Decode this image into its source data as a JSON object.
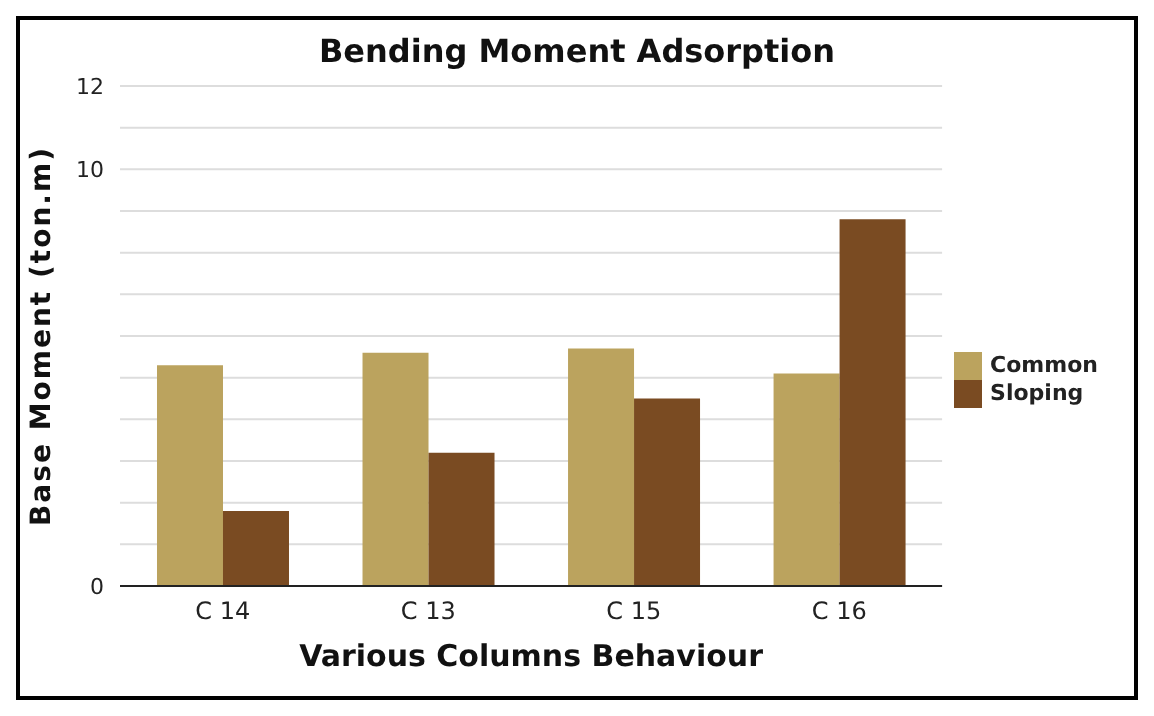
{
  "chart_data": {
    "type": "bar",
    "title": "Bending Moment Adsorption",
    "xlabel": "Various Columns Behaviour",
    "ylabel": "Base Moment (ton.m)",
    "categories": [
      "C 14",
      "C 13",
      "C 15",
      "C 16"
    ],
    "series": [
      {
        "name": "Common",
        "color": "#bba35e",
        "values": [
          5.3,
          5.6,
          5.7,
          5.1
        ]
      },
      {
        "name": "Sloping",
        "color": "#7a4b22",
        "values": [
          1.8,
          3.2,
          4.5,
          8.8
        ]
      }
    ],
    "ylim": [
      0,
      12
    ],
    "yticks": [
      0,
      {
        "value": 1,
        "label": null
      },
      {
        "value": 2,
        "label": null
      },
      {
        "value": 3,
        "label": null
      },
      {
        "value": 4,
        "label": null
      },
      {
        "value": 5,
        "label": null
      },
      {
        "value": 6,
        "label": null
      },
      {
        "value": 7,
        "label": null
      },
      {
        "value": 8,
        "label": null
      },
      {
        "value": 9,
        "label": null
      },
      10,
      {
        "value": 11,
        "label": null
      },
      12
    ],
    "grid": "y",
    "legend": "right"
  }
}
